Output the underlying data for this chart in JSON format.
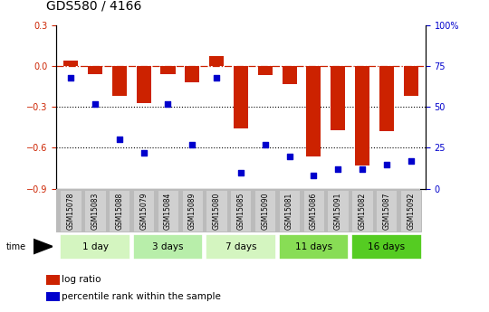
{
  "title": "GDS580 / 4166",
  "samples": [
    "GSM15078",
    "GSM15083",
    "GSM15088",
    "GSM15079",
    "GSM15084",
    "GSM15089",
    "GSM15080",
    "GSM15085",
    "GSM15090",
    "GSM15081",
    "GSM15086",
    "GSM15091",
    "GSM15082",
    "GSM15087",
    "GSM15092"
  ],
  "log_ratio": [
    0.04,
    -0.06,
    -0.22,
    -0.27,
    -0.06,
    -0.12,
    0.07,
    -0.46,
    -0.07,
    -0.13,
    -0.66,
    -0.47,
    -0.73,
    -0.48,
    -0.22
  ],
  "percentile_rank": [
    68,
    52,
    30,
    22,
    52,
    27,
    68,
    10,
    27,
    20,
    8,
    12,
    12,
    15,
    17
  ],
  "groups": [
    {
      "label": "1 day",
      "start": 0,
      "end": 2,
      "color": "#d4f5c0"
    },
    {
      "label": "3 days",
      "start": 3,
      "end": 5,
      "color": "#b8eeaa"
    },
    {
      "label": "7 days",
      "start": 6,
      "end": 8,
      "color": "#d4f5c0"
    },
    {
      "label": "11 days",
      "start": 9,
      "end": 11,
      "color": "#88dd55"
    },
    {
      "label": "16 days",
      "start": 12,
      "end": 14,
      "color": "#55cc22"
    }
  ],
  "ylim_left": [
    -0.9,
    0.3
  ],
  "ylim_right": [
    0,
    100
  ],
  "yticks_left": [
    -0.9,
    -0.6,
    -0.3,
    0.0,
    0.3
  ],
  "yticks_right": [
    0,
    25,
    50,
    75,
    100
  ],
  "bar_color": "#cc2200",
  "dot_color": "#0000cc",
  "hline_color": "#cc2200",
  "dotted_lines": [
    -0.3,
    -0.6
  ],
  "background_color": "#ffffff",
  "title_fontsize": 10,
  "tick_label_fontsize": 7,
  "sample_box_color": "#cccccc",
  "sample_box_edge": "#aaaaaa"
}
